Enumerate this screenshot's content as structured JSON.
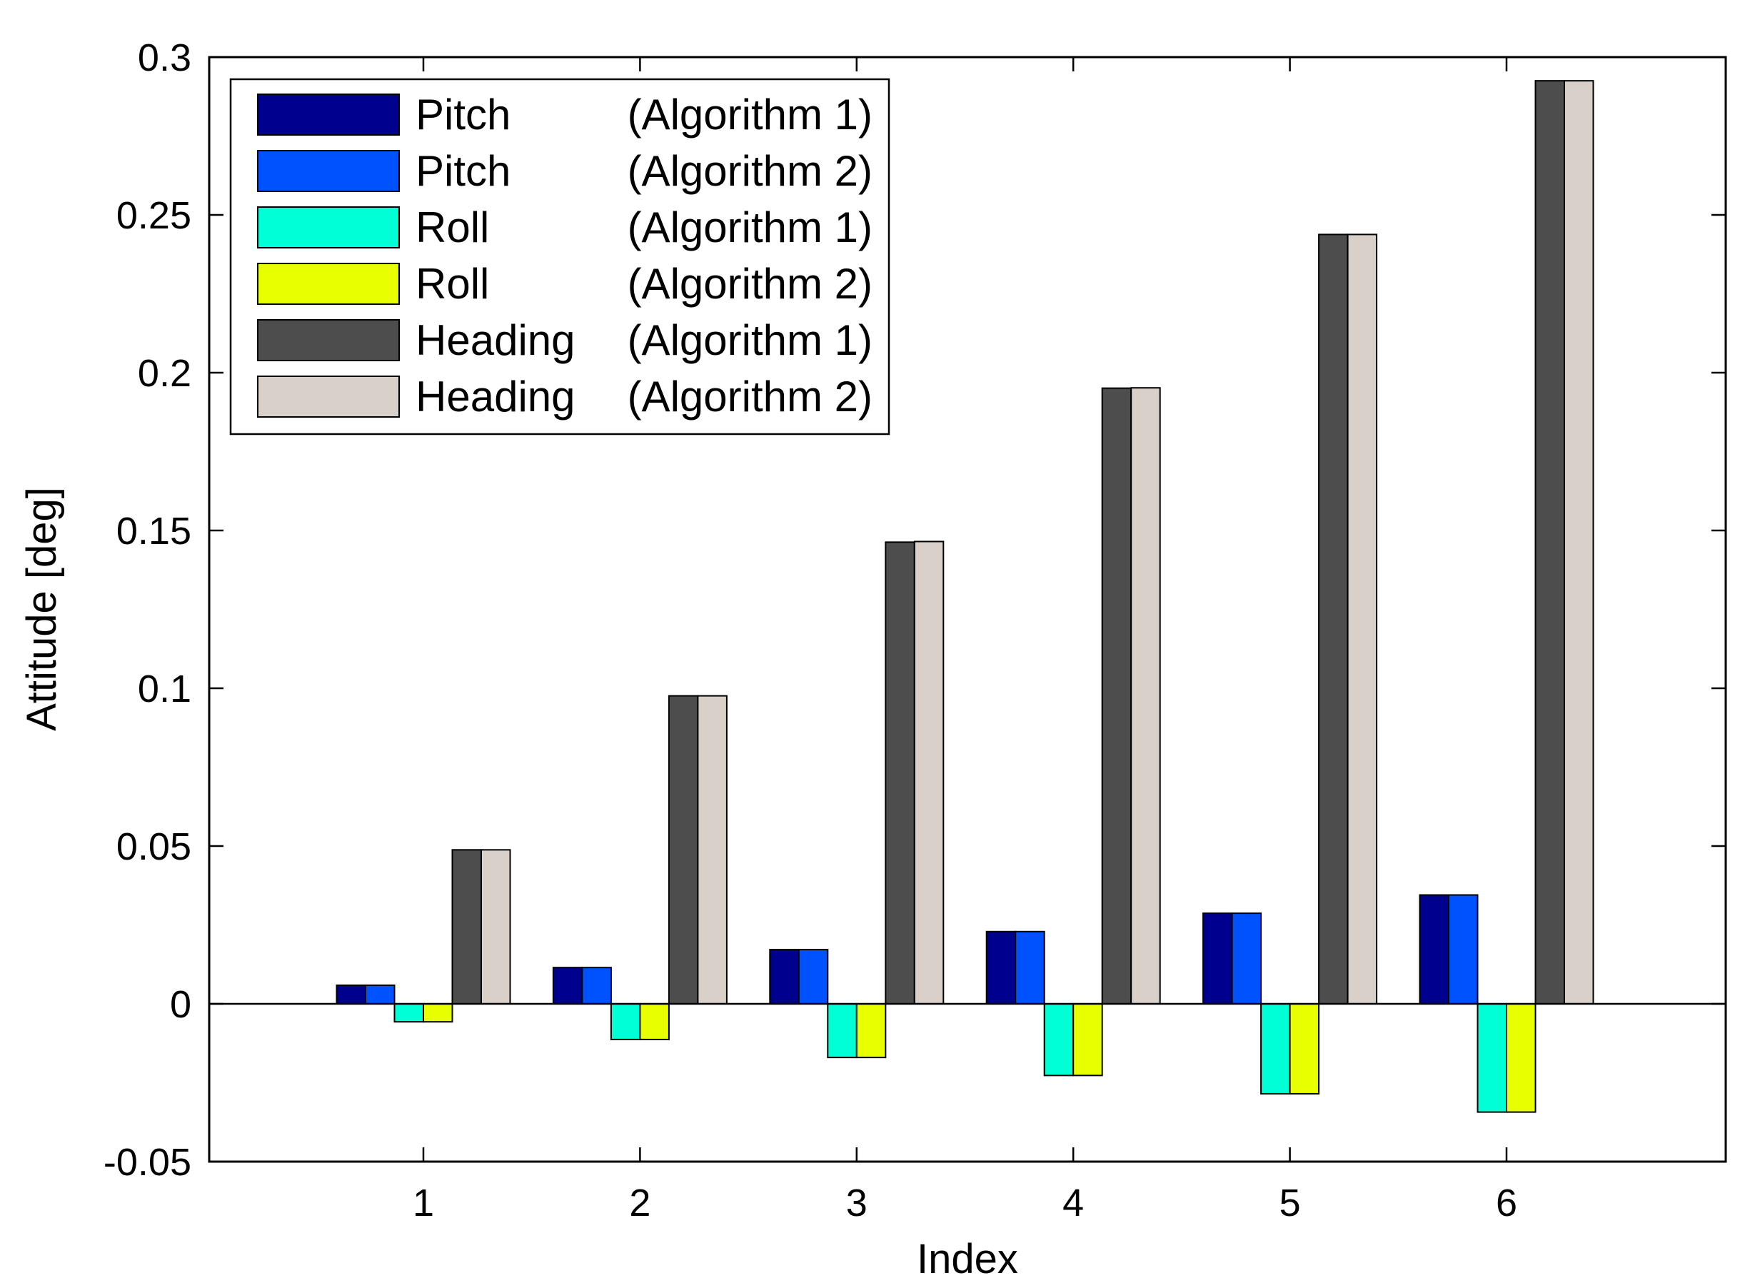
{
  "chart_data": {
    "type": "bar",
    "title": "",
    "xlabel": "Index",
    "ylabel": "Attitude [deg]",
    "categories": [
      "1",
      "2",
      "3",
      "4",
      "5",
      "6"
    ],
    "ylim": [
      -0.05,
      0.3
    ],
    "yticks": [
      -0.05,
      0,
      0.05,
      0.1,
      0.15,
      0.2,
      0.25,
      0.3
    ],
    "ytick_labels": [
      "-0.05",
      "0",
      "0.05",
      "0.1",
      "0.15",
      "0.2",
      "0.25",
      "0.3"
    ],
    "grid": false,
    "legend_position": "top-left",
    "series": [
      {
        "name": "Pitch",
        "algorithm": "(Algorithm 1)",
        "color": "#00008f",
        "values": [
          0.0059,
          0.0115,
          0.0172,
          0.0229,
          0.0287,
          0.0345
        ]
      },
      {
        "name": "Pitch",
        "algorithm": "(Algorithm 2)",
        "color": "#0052ff",
        "values": [
          0.0059,
          0.0115,
          0.0172,
          0.0229,
          0.0287,
          0.0345
        ]
      },
      {
        "name": "Roll",
        "algorithm": "(Algorithm 1)",
        "color": "#00ffd4",
        "values": [
          -0.0057,
          -0.0113,
          -0.017,
          -0.0227,
          -0.0285,
          -0.0343
        ]
      },
      {
        "name": "Roll",
        "algorithm": "(Algorithm 2)",
        "color": "#e8ff00",
        "values": [
          -0.0057,
          -0.0113,
          -0.017,
          -0.0227,
          -0.0285,
          -0.0343
        ]
      },
      {
        "name": "Heading",
        "algorithm": "(Algorithm 1)",
        "color": "#4d4d4d",
        "values": [
          0.0488,
          0.0976,
          0.1463,
          0.1951,
          0.2438,
          0.2925
        ]
      },
      {
        "name": "Heading",
        "algorithm": "(Algorithm 2)",
        "color": "#d9d1c9",
        "values": [
          0.0488,
          0.0976,
          0.1465,
          0.1952,
          0.2438,
          0.2925
        ]
      }
    ]
  }
}
